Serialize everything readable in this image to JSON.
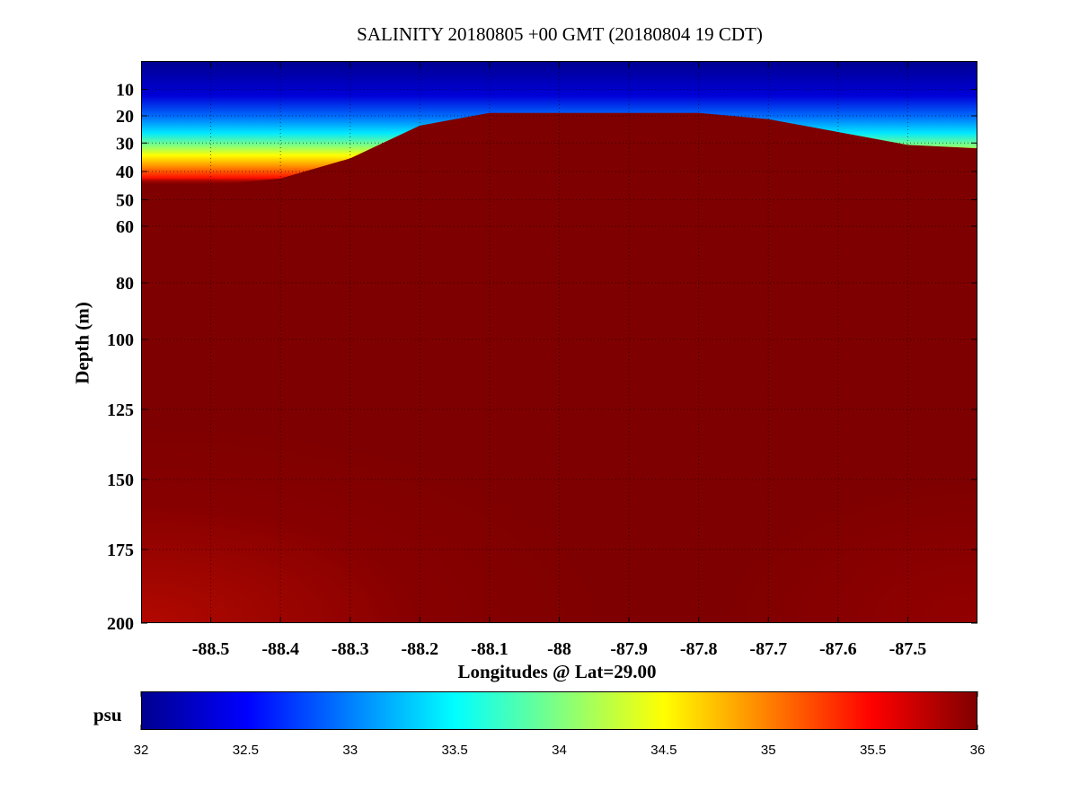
{
  "chart_data": {
    "type": "heatmap",
    "title": "SALINITY 20180805 +00 GMT (20180804 19 CDT)",
    "xlabel": "Longitudes @ Lat=29.00",
    "ylabel": "Depth (m)",
    "x_ticks": [
      "-88.5",
      "-88.4",
      "-88.3",
      "-88.2",
      "-88.1",
      "-88",
      "-87.9",
      "-87.8",
      "-87.7",
      "-87.6",
      "-87.5"
    ],
    "x_tick_values": [
      -88.5,
      -88.4,
      -88.3,
      -88.2,
      -88.1,
      -88.0,
      -87.9,
      -87.8,
      -87.7,
      -87.6,
      -87.5
    ],
    "xlim": [
      -88.6,
      -87.4
    ],
    "y_ticks": [
      "10",
      "20",
      "30",
      "40",
      "50",
      "60",
      "80",
      "100",
      "125",
      "150",
      "175",
      "200"
    ],
    "y_tick_values": [
      10,
      20,
      30,
      40,
      50,
      60,
      80,
      100,
      125,
      150,
      175,
      200
    ],
    "ylim": [
      0,
      200
    ],
    "y_scale": "stretched (finer near surface)",
    "grid": true,
    "colormap": "jet",
    "colorbar": {
      "label": "psu",
      "ticks": [
        "32",
        "32.5",
        "33",
        "33.5",
        "34",
        "34.5",
        "35",
        "35.5",
        "36"
      ],
      "range": [
        32,
        36
      ]
    },
    "halocline_depth_by_longitude": {
      "longitudes": [
        -88.6,
        -88.5,
        -88.4,
        -88.3,
        -88.2,
        -88.1,
        -88.0,
        -87.9,
        -87.8,
        -87.7,
        -87.6,
        -87.5,
        -87.4
      ],
      "depth_of_35psu": [
        38,
        38,
        36,
        30,
        20,
        16,
        16,
        16,
        16,
        18,
        22,
        26,
        27
      ]
    },
    "values": {
      "surface": 32,
      "deep": 36
    }
  }
}
